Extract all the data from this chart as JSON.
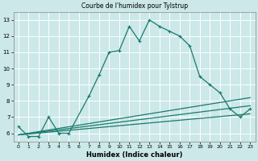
{
  "title": "Courbe de l'humidex pour Tylstrup",
  "xlabel": "Humidex (Indice chaleur)",
  "bg_color": "#cce8e8",
  "grid_color": "#ffffff",
  "line_color": "#1a7a6e",
  "xlim": [
    -0.5,
    23.5
  ],
  "ylim": [
    5.5,
    13.5
  ],
  "xticks": [
    0,
    1,
    2,
    3,
    4,
    5,
    6,
    7,
    8,
    9,
    10,
    11,
    12,
    13,
    14,
    15,
    16,
    17,
    18,
    19,
    20,
    21,
    22,
    23
  ],
  "yticks": [
    6,
    7,
    8,
    9,
    10,
    11,
    12,
    13
  ],
  "series1_x": [
    0,
    1,
    2,
    3,
    4,
    5,
    7,
    8,
    9,
    10,
    11,
    12,
    13,
    14,
    15,
    16,
    17,
    18,
    19,
    20,
    21,
    22,
    23
  ],
  "series1_y": [
    6.4,
    5.8,
    5.8,
    7.0,
    6.0,
    6.0,
    8.3,
    9.6,
    11.0,
    11.1,
    12.6,
    11.7,
    13.0,
    12.6,
    12.3,
    12.0,
    11.4,
    9.5,
    9.0,
    8.5,
    7.5,
    7.0,
    7.5
  ],
  "series2_x": [
    0,
    23
  ],
  "series2_y": [
    5.9,
    7.2
  ],
  "series3_x": [
    0,
    23
  ],
  "series3_y": [
    5.9,
    7.7
  ],
  "series4_x": [
    0,
    23
  ],
  "series4_y": [
    5.9,
    8.2
  ],
  "marker_x": [
    0,
    1,
    2,
    3,
    4,
    5,
    7,
    8,
    9,
    10,
    11,
    12,
    13,
    14,
    15,
    16,
    17,
    18,
    19,
    20,
    21,
    22,
    23
  ],
  "marker_y": [
    6.4,
    5.8,
    5.8,
    7.0,
    6.0,
    6.0,
    8.3,
    9.6,
    11.0,
    11.1,
    12.6,
    11.7,
    13.0,
    12.6,
    12.3,
    12.0,
    11.4,
    9.5,
    9.0,
    8.5,
    7.5,
    7.0,
    7.5
  ]
}
